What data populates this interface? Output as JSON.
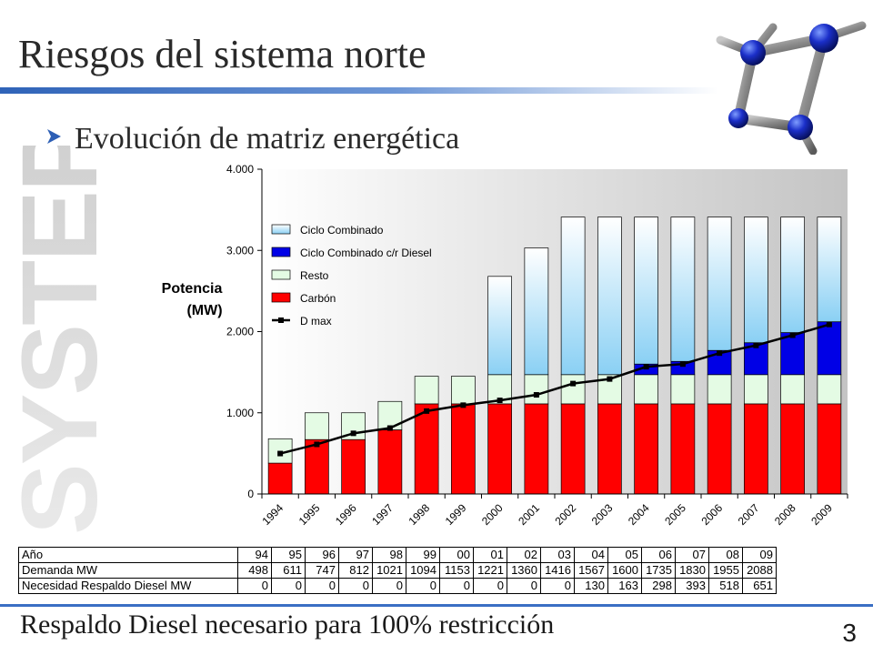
{
  "slide": {
    "title": "Riesgos del sistema norte",
    "bullet": "Evolución de matriz energética",
    "footer": "Respaldo Diesel necesario para 100% restricción",
    "page_number": "3",
    "watermark_text": "SYSTEP"
  },
  "chart_data": {
    "type": "bar",
    "stacked": true,
    "categories": [
      "1994",
      "1995",
      "1996",
      "1997",
      "1998",
      "1999",
      "2000",
      "2001",
      "2002",
      "2003",
      "2004",
      "2005",
      "2006",
      "2007",
      "2008",
      "2009"
    ],
    "ylabel": [
      "Potencia",
      "(MW)"
    ],
    "ylim": [
      0,
      4000
    ],
    "yticks": [
      0,
      1000,
      2000,
      3000,
      4000
    ],
    "ytick_labels": [
      "0",
      "1.000",
      "2.000",
      "3.000",
      "4.000"
    ],
    "grid": false,
    "legend_position": "upper-left inside plot",
    "series": [
      {
        "name": "Carbón",
        "color": "#ff0000",
        "values": [
          380,
          670,
          670,
          790,
          1110,
          1110,
          1110,
          1110,
          1110,
          1110,
          1110,
          1110,
          1110,
          1110,
          1110,
          1110
        ]
      },
      {
        "name": "Resto",
        "color": "#e4fbe4",
        "values": [
          300,
          330,
          330,
          350,
          340,
          340,
          360,
          360,
          360,
          360,
          360,
          360,
          360,
          360,
          360,
          360
        ]
      },
      {
        "name": "Ciclo Combinado c/r Diesel",
        "color": "#0000e6",
        "values": [
          0,
          0,
          0,
          0,
          0,
          0,
          0,
          0,
          0,
          0,
          130,
          163,
          298,
          393,
          518,
          651
        ]
      },
      {
        "name": "Ciclo Combinado",
        "color": "#8ad0f4",
        "values": [
          0,
          0,
          0,
          0,
          0,
          0,
          1210,
          1560,
          1940,
          1940,
          1810,
          1777,
          1642,
          1547,
          1422,
          1289
        ]
      }
    ],
    "line_series": {
      "name": "D max",
      "color": "#000000",
      "values": [
        498,
        611,
        747,
        812,
        1021,
        1094,
        1153,
        1221,
        1360,
        1416,
        1567,
        1600,
        1735,
        1830,
        1955,
        2088
      ]
    },
    "legend_order": [
      "Ciclo Combinado",
      "Ciclo Combinado c/r Diesel",
      "Resto",
      "Carbón",
      "D max"
    ]
  },
  "table": {
    "rows": [
      {
        "label": "Año",
        "values": [
          "94",
          "95",
          "96",
          "97",
          "98",
          "99",
          "00",
          "01",
          "02",
          "03",
          "04",
          "05",
          "06",
          "07",
          "08",
          "09"
        ]
      },
      {
        "label": "Demanda MW",
        "values": [
          "498",
          "611",
          "747",
          "812",
          "1021",
          "1094",
          "1153",
          "1221",
          "1360",
          "1416",
          "1567",
          "1600",
          "1735",
          "1830",
          "1955",
          "2088"
        ]
      },
      {
        "label": "Necesidad Respaldo Diesel MW",
        "values": [
          "0",
          "0",
          "0",
          "0",
          "0",
          "0",
          "0",
          "0",
          "0",
          "0",
          "130",
          "163",
          "298",
          "393",
          "518",
          "651"
        ]
      }
    ]
  }
}
